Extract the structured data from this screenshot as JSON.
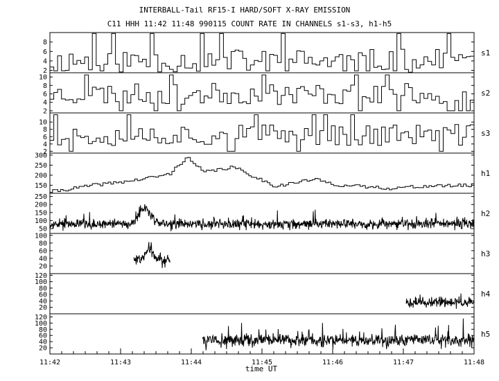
{
  "chart_data": {
    "type": "line",
    "title": "INTERBALL-Tail RF15-I HARD/SOFT X-RAY EMISSION",
    "subtitle": "C11 HHH 11:42 11:48 990115  COUNT RATE IN CHANNELS s1-s3, h1-h5",
    "xlabel": "time UT",
    "x_ticks": [
      "11:42",
      "11:43",
      "11:44",
      "11:45",
      "11:46",
      "11:47",
      "11:48"
    ],
    "xlim": [
      "11:42",
      "11:48"
    ],
    "grid": false,
    "panels": [
      {
        "name": "s1",
        "ylim": [
          1.5,
          10
        ],
        "yticks": [
          "2",
          "4",
          "6",
          "8"
        ],
        "kind": "step",
        "base": 4,
        "spread": 2.5,
        "peak_min": 1.9,
        "peak_max": 9.8,
        "seed": 11
      },
      {
        "name": "s2",
        "ylim": [
          1.5,
          11
        ],
        "yticks": [
          "2",
          "4",
          "6",
          "8",
          "10"
        ],
        "kind": "step",
        "base": 6,
        "spread": 2.5,
        "peak_min": 2,
        "peak_max": 10.5,
        "seed": 23
      },
      {
        "name": "s3",
        "ylim": [
          1.5,
          12.5
        ],
        "yticks": [
          "2",
          "4",
          "6",
          "8",
          "10"
        ],
        "kind": "step",
        "base": 6.5,
        "spread": 3,
        "peak_min": 2,
        "peak_max": 12,
        "seed": 37
      },
      {
        "name": "h1",
        "ylim": [
          110,
          310
        ],
        "yticks": [
          "150",
          "200",
          "250",
          "300"
        ],
        "kind": "profile",
        "seed": 41,
        "profile_t": [
          0,
          4,
          10,
          20,
          28,
          32,
          36,
          43,
          53,
          62,
          68,
          80,
          88,
          100
        ],
        "profile_v": [
          118,
          130,
          150,
          175,
          205,
          290,
          215,
          240,
          145,
          180,
          150,
          135,
          145,
          150
        ]
      },
      {
        "name": "h2",
        "ylim": [
          20,
          270
        ],
        "yticks": [
          "50",
          "100",
          "150",
          "200",
          "250"
        ],
        "kind": "noise",
        "base": 80,
        "noise": 30,
        "seed": 53,
        "bump_center": 22.3,
        "bump_width": 1.8,
        "bump_height": 100
      },
      {
        "name": "h3",
        "ylim": [
          0,
          105
        ],
        "yticks": [
          "20",
          "40",
          "60",
          "80",
          "100"
        ],
        "kind": "burst",
        "t_start": 19.8,
        "t_end": 28.3,
        "base": 35,
        "noise": 15,
        "seed": 61,
        "bump_center": 23.5,
        "bump_width": 1.2,
        "bump_height": 30
      },
      {
        "name": "h4",
        "ylim": [
          0,
          125
        ],
        "yticks": [
          "20",
          "40",
          "60",
          "80",
          "100",
          "120"
        ],
        "kind": "burst",
        "t_start": 84,
        "t_end": 100,
        "base": 35,
        "noise": 14,
        "seed": 71
      },
      {
        "name": "h5",
        "ylim": [
          0,
          130
        ],
        "yticks": [
          "20",
          "40",
          "60",
          "80",
          "100",
          "120"
        ],
        "kind": "burst",
        "t_start": 36,
        "t_end": 100,
        "base": 45,
        "noise": 20,
        "seed": 83
      }
    ]
  }
}
